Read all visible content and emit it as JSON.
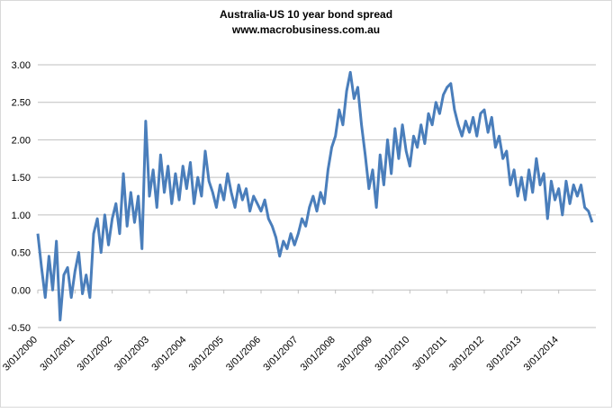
{
  "chart_data": {
    "type": "line",
    "title": "Australia-US 10 year bond spread",
    "subtitle": "www.macrobusiness.com.au",
    "xlim": [
      2000,
      2015
    ],
    "xticks": [
      {
        "value": 2000,
        "label": "3/01/2000"
      },
      {
        "value": 2001,
        "label": "3/01/2001"
      },
      {
        "value": 2002,
        "label": "3/01/2002"
      },
      {
        "value": 2003,
        "label": "3/01/2003"
      },
      {
        "value": 2004,
        "label": "3/01/2004"
      },
      {
        "value": 2005,
        "label": "3/01/2005"
      },
      {
        "value": 2006,
        "label": "3/01/2006"
      },
      {
        "value": 2007,
        "label": "3/01/2007"
      },
      {
        "value": 2008,
        "label": "3/01/2008"
      },
      {
        "value": 2009,
        "label": "3/01/2009"
      },
      {
        "value": 2010,
        "label": "3/01/2010"
      },
      {
        "value": 2011,
        "label": "3/01/2011"
      },
      {
        "value": 2012,
        "label": "3/01/2012"
      },
      {
        "value": 2013,
        "label": "3/01/2013"
      },
      {
        "value": 2014,
        "label": "3/01/2014"
      }
    ],
    "ylim": [
      -0.5,
      3
    ],
    "yticks": [
      {
        "value": -0.5,
        "label": "-0.50"
      },
      {
        "value": 0,
        "label": "0.00"
      },
      {
        "value": 0.5,
        "label": "0.50"
      },
      {
        "value": 1,
        "label": "1.00"
      },
      {
        "value": 1.5,
        "label": "1.50"
      },
      {
        "value": 2,
        "label": "2.00"
      },
      {
        "value": 2.5,
        "label": "2.50"
      },
      {
        "value": 3,
        "label": "3.00"
      }
    ],
    "grid": true,
    "x": [
      2000.0,
      2000.1,
      2000.2,
      2000.3,
      2000.4,
      2000.5,
      2000.6,
      2000.7,
      2000.8,
      2000.9,
      2001.0,
      2001.1,
      2001.2,
      2001.3,
      2001.4,
      2001.5,
      2001.6,
      2001.7,
      2001.8,
      2001.9,
      2002.0,
      2002.1,
      2002.2,
      2002.3,
      2002.4,
      2002.5,
      2002.6,
      2002.7,
      2002.8,
      2002.9,
      2003.0,
      2003.1,
      2003.2,
      2003.3,
      2003.4,
      2003.5,
      2003.6,
      2003.7,
      2003.8,
      2003.9,
      2004.0,
      2004.1,
      2004.2,
      2004.3,
      2004.4,
      2004.5,
      2004.6,
      2004.7,
      2004.8,
      2004.9,
      2005.0,
      2005.1,
      2005.2,
      2005.3,
      2005.4,
      2005.5,
      2005.6,
      2005.7,
      2005.8,
      2005.9,
      2006.0,
      2006.1,
      2006.2,
      2006.3,
      2006.4,
      2006.5,
      2006.6,
      2006.7,
      2006.8,
      2006.9,
      2007.0,
      2007.1,
      2007.2,
      2007.3,
      2007.4,
      2007.5,
      2007.6,
      2007.7,
      2007.8,
      2007.9,
      2008.0,
      2008.1,
      2008.2,
      2008.3,
      2008.4,
      2008.5,
      2008.6,
      2008.7,
      2008.8,
      2008.9,
      2009.0,
      2009.1,
      2009.2,
      2009.3,
      2009.4,
      2009.5,
      2009.6,
      2009.7,
      2009.8,
      2009.9,
      2010.0,
      2010.1,
      2010.2,
      2010.3,
      2010.4,
      2010.5,
      2010.6,
      2010.7,
      2010.8,
      2010.9,
      2011.0,
      2011.1,
      2011.2,
      2011.3,
      2011.4,
      2011.5,
      2011.6,
      2011.7,
      2011.8,
      2011.9,
      2012.0,
      2012.1,
      2012.2,
      2012.3,
      2012.4,
      2012.5,
      2012.6,
      2012.7,
      2012.8,
      2012.9,
      2013.0,
      2013.1,
      2013.2,
      2013.3,
      2013.4,
      2013.5,
      2013.6,
      2013.7,
      2013.8,
      2013.9,
      2014.0,
      2014.1,
      2014.2,
      2014.3,
      2014.4,
      2014.5,
      2014.6,
      2014.7,
      2014.8,
      2014.9
    ],
    "series": [
      {
        "color": "#4a7ebb",
        "values": [
          0.75,
          0.3,
          -0.1,
          0.45,
          0.0,
          0.65,
          -0.4,
          0.2,
          0.3,
          -0.1,
          0.25,
          0.5,
          -0.05,
          0.2,
          -0.1,
          0.75,
          0.95,
          0.5,
          1.0,
          0.6,
          0.95,
          1.15,
          0.75,
          1.55,
          0.85,
          1.3,
          0.9,
          1.25,
          0.55,
          2.25,
          1.25,
          1.6,
          1.1,
          1.8,
          1.3,
          1.65,
          1.15,
          1.55,
          1.2,
          1.65,
          1.35,
          1.7,
          1.15,
          1.5,
          1.25,
          1.85,
          1.45,
          1.3,
          1.1,
          1.4,
          1.2,
          1.55,
          1.3,
          1.1,
          1.4,
          1.2,
          1.35,
          1.05,
          1.25,
          1.15,
          1.05,
          1.2,
          0.95,
          0.85,
          0.7,
          0.45,
          0.65,
          0.55,
          0.75,
          0.6,
          0.75,
          0.95,
          0.85,
          1.1,
          1.25,
          1.05,
          1.3,
          1.15,
          1.6,
          1.9,
          2.05,
          2.4,
          2.2,
          2.65,
          2.9,
          2.55,
          2.7,
          2.2,
          1.8,
          1.35,
          1.6,
          1.1,
          1.8,
          1.4,
          2.0,
          1.55,
          2.15,
          1.75,
          2.2,
          1.85,
          1.65,
          2.05,
          1.9,
          2.2,
          1.95,
          2.35,
          2.2,
          2.5,
          2.35,
          2.6,
          2.7,
          2.75,
          2.4,
          2.2,
          2.05,
          2.25,
          2.1,
          2.3,
          2.05,
          2.35,
          2.4,
          2.1,
          2.3,
          1.9,
          2.05,
          1.75,
          1.85,
          1.4,
          1.6,
          1.25,
          1.5,
          1.2,
          1.6,
          1.3,
          1.75,
          1.4,
          1.55,
          0.95,
          1.45,
          1.2,
          1.35,
          1.0,
          1.45,
          1.15,
          1.4,
          1.25,
          1.4,
          1.1,
          1.05,
          0.9
        ]
      }
    ]
  }
}
